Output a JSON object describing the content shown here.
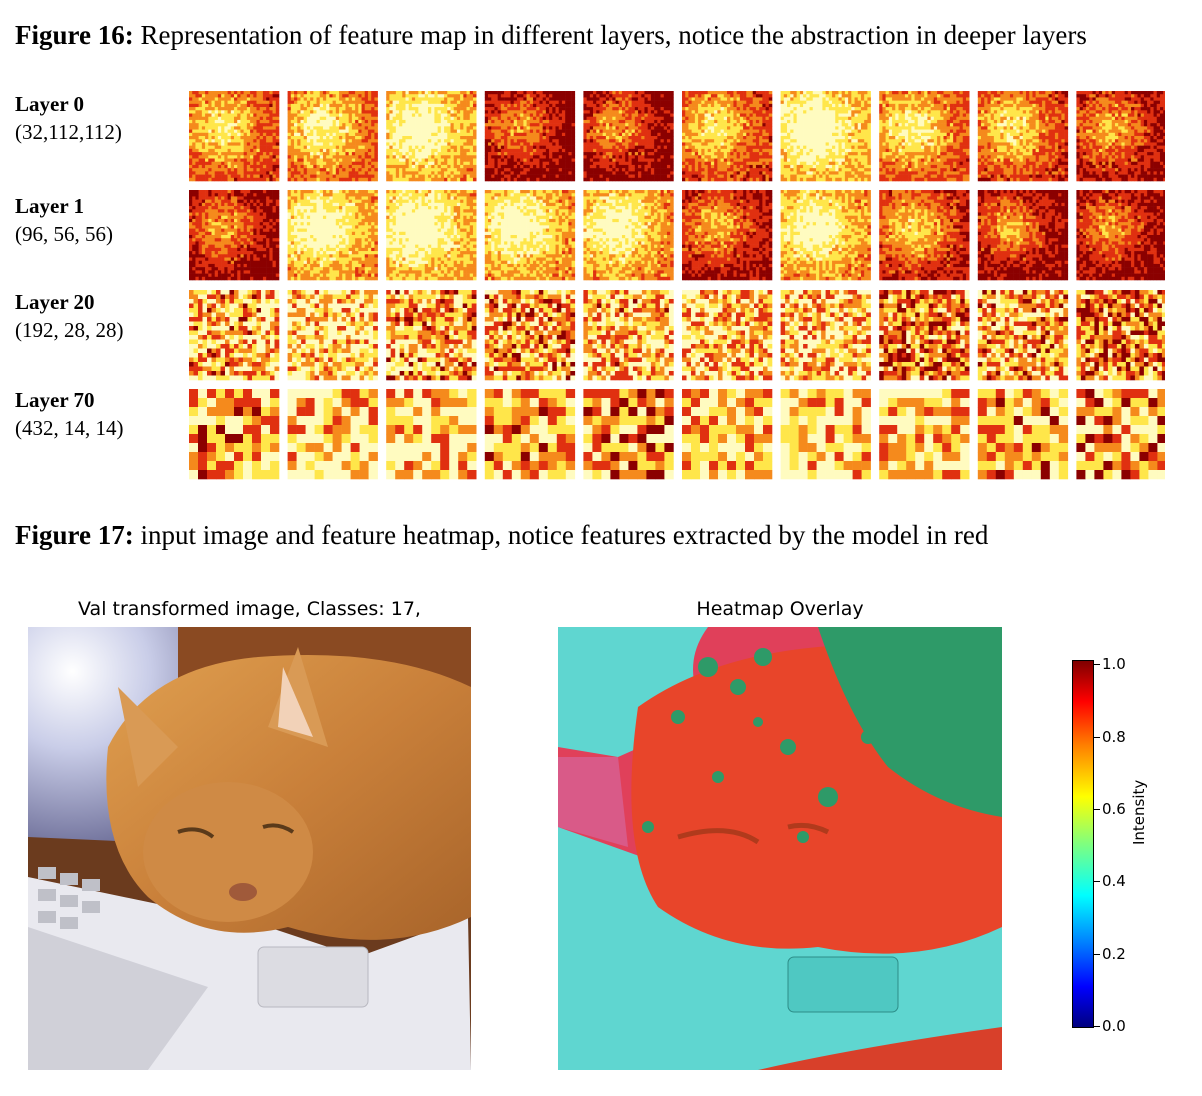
{
  "figure16": {
    "label": "Figure 16:",
    "text": " Representation of feature map in different layers, notice the abstraction in deeper layers",
    "layers": [
      {
        "name": "Layer 0",
        "shape": "(32,112,112)"
      },
      {
        "name": "Layer 1",
        "shape": "(96, 56, 56)"
      },
      {
        "name": "Layer 20",
        "shape": "(192, 28, 28)"
      },
      {
        "name": "Layer 70",
        "shape": "(432, 14, 14)"
      }
    ]
  },
  "figure17": {
    "label": "Figure 17:",
    "text": " input image and feature heatmap, notice features extracted by the model in red",
    "left_title": "Val transformed image, Classes: 17,",
    "right_title": "Heatmap Overlay",
    "colorbar": {
      "label": "Intensity",
      "ticks": [
        "0.0",
        "0.2",
        "0.4",
        "0.6",
        "0.8",
        "1.0"
      ],
      "colormap": "jet"
    }
  },
  "colors": {
    "heat_dark": "#8b0000",
    "heat_red": "#e03010",
    "heat_orange": "#f58a1c",
    "heat_yellow": "#ffe64a",
    "heat_pale": "#fffbc0",
    "overlay_cyan": "#5fd6d0",
    "overlay_green": "#2e9a68",
    "overlay_red": "#e8452a"
  }
}
